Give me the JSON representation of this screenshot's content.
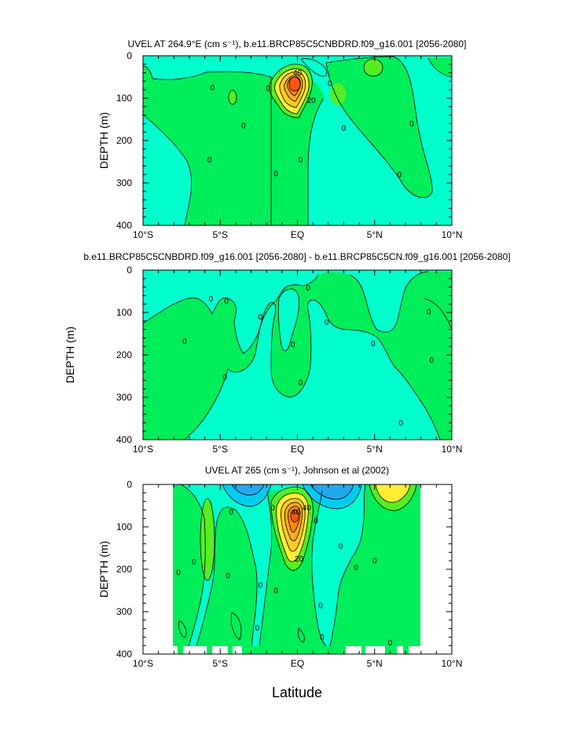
{
  "chart_data": [
    {
      "type": "heatmap",
      "title": "UVEL AT 264.9°E (cm s⁻¹), b.e11.BRCP85C5CNBDRD.f09_g16.001 [2056-2080]",
      "ylabel": "DEPTH (m)",
      "xlabel": "",
      "xticks": [
        "10°S",
        "5°S",
        "EQ",
        "5°N",
        "10°N"
      ],
      "yticks": [
        "0",
        "100",
        "200",
        "300",
        "400"
      ],
      "xlim": [
        -10,
        10
      ],
      "ylim": [
        0,
        400
      ],
      "contour_labels": [
        {
          "text": "40",
          "lat": 0.0,
          "depth": 40
        },
        {
          "text": "20",
          "lat": 0.9,
          "depth": 105
        },
        {
          "text": "0",
          "lat": -5.5,
          "depth": 75
        },
        {
          "text": "0",
          "lat": -3.5,
          "depth": 165
        },
        {
          "text": "0",
          "lat": -5.7,
          "depth": 245
        },
        {
          "text": "0",
          "lat": -1.9,
          "depth": 77
        },
        {
          "text": "0",
          "lat": -1.4,
          "depth": 278
        },
        {
          "text": "0",
          "lat": 0.2,
          "depth": 245
        },
        {
          "text": "0",
          "lat": 2.1,
          "depth": 65
        },
        {
          "text": "0",
          "lat": 3.0,
          "depth": 170
        },
        {
          "text": "0",
          "lat": 7.4,
          "depth": 160
        },
        {
          "text": "0",
          "lat": 6.6,
          "depth": 280
        }
      ]
    },
    {
      "type": "heatmap",
      "title": "b.e11.BRCP85C5CNBDRD.f09_g16.001 [2056-2080] - b.e11.BRCP85C5CN.f09_g16.001 [2056-2080]",
      "ylabel": "DEPTH (m)",
      "xlabel": "",
      "xticks": [
        "10°S",
        "5°S",
        "EQ",
        "5°N",
        "10°N"
      ],
      "yticks": [
        "0",
        "100",
        "200",
        "300",
        "400"
      ],
      "xlim": [
        -10,
        10
      ],
      "ylim": [
        0,
        400
      ],
      "contour_labels": [
        {
          "text": "0",
          "lat": -5.6,
          "depth": 68
        },
        {
          "text": "0",
          "lat": -4.6,
          "depth": 73
        },
        {
          "text": "0",
          "lat": -2.4,
          "depth": 110
        },
        {
          "text": "0",
          "lat": -7.3,
          "depth": 168
        },
        {
          "text": "0",
          "lat": -4.7,
          "depth": 253
        },
        {
          "text": "0",
          "lat": 0.7,
          "depth": 42
        },
        {
          "text": "0",
          "lat": -0.3,
          "depth": 175
        },
        {
          "text": "0",
          "lat": 0.2,
          "depth": 265
        },
        {
          "text": "0",
          "lat": 1.9,
          "depth": 122
        },
        {
          "text": "0",
          "lat": 4.9,
          "depth": 173
        },
        {
          "text": "0",
          "lat": 8.5,
          "depth": 98
        },
        {
          "text": "0",
          "lat": 8.7,
          "depth": 212
        },
        {
          "text": "0",
          "lat": 6.7,
          "depth": 360
        }
      ]
    },
    {
      "type": "heatmap",
      "title": "UVEL AT 265 (cm s⁻¹), Johnson et al (2002)",
      "ylabel": "DEPTH (m)",
      "xlabel": "Latitude",
      "xticks": [
        "10°S",
        "5°S",
        "EQ",
        "5°N",
        "10°N"
      ],
      "yticks": [
        "0",
        "100",
        "200",
        "300",
        "400"
      ],
      "xlim": [
        -10,
        10
      ],
      "ylim": [
        0,
        400
      ],
      "contour_labels": [
        {
          "text": "40",
          "lat": 0.6,
          "depth": 55
        },
        {
          "text": "40",
          "lat": -0.1,
          "depth": 65
        },
        {
          "text": "20",
          "lat": 0.1,
          "depth": 175
        },
        {
          "text": "0",
          "lat": -4.3,
          "depth": 65
        },
        {
          "text": "0",
          "lat": -4.5,
          "depth": 215
        },
        {
          "text": "0",
          "lat": -6.7,
          "depth": 182
        },
        {
          "text": "0",
          "lat": -7.7,
          "depth": 207
        },
        {
          "text": "0",
          "lat": -1.6,
          "depth": 55
        },
        {
          "text": "0",
          "lat": -2.4,
          "depth": 237
        },
        {
          "text": "0",
          "lat": -1.4,
          "depth": 250
        },
        {
          "text": "0",
          "lat": -2.6,
          "depth": 338
        },
        {
          "text": "0",
          "lat": 1.2,
          "depth": 85
        },
        {
          "text": "0",
          "lat": 2.8,
          "depth": 145
        },
        {
          "text": "0",
          "lat": 3.8,
          "depth": 195
        },
        {
          "text": "0",
          "lat": 5.0,
          "depth": 180
        },
        {
          "text": "0",
          "lat": 1.5,
          "depth": 285
        },
        {
          "text": "0",
          "lat": 1.6,
          "depth": 360
        },
        {
          "text": "0",
          "lat": 6.0,
          "depth": 373
        }
      ]
    }
  ],
  "colors": {
    "cyan": "#00ffcc",
    "green": "#00ee5a",
    "lime": "#55ee22",
    "yellow": "#ffee33",
    "gold": "#ffcc22",
    "orange": "#ffaa22",
    "deeporange": "#ff8811",
    "red": "#ff5511",
    "skyblue": "#00ccf0",
    "blue": "#22a8ee"
  }
}
